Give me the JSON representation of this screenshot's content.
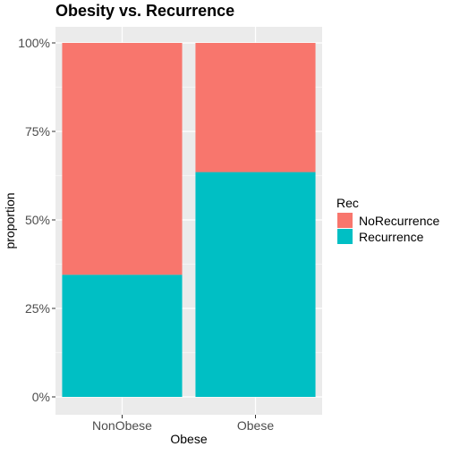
{
  "chart_data": {
    "type": "bar",
    "stacked": true,
    "position": "fill",
    "title": "Obesity vs. Recurrence",
    "xlabel": "Obese",
    "ylabel": "proportion",
    "categories": [
      "NonObese",
      "Obese"
    ],
    "series": [
      {
        "name": "NoRecurrence",
        "values": [
          0.655,
          0.365
        ],
        "color": "#F8766D"
      },
      {
        "name": "Recurrence",
        "values": [
          0.345,
          0.635
        ],
        "color": "#00BFC4"
      }
    ],
    "ylim": [
      0,
      1
    ],
    "yticks": [
      0,
      0.25,
      0.5,
      0.75,
      1
    ],
    "ytick_labels": [
      "0%",
      "25%",
      "50%",
      "75%",
      "100%"
    ],
    "legend_title": "Rec",
    "legend_position": "right",
    "grid": true,
    "panel_background": "#EBEBEB"
  }
}
